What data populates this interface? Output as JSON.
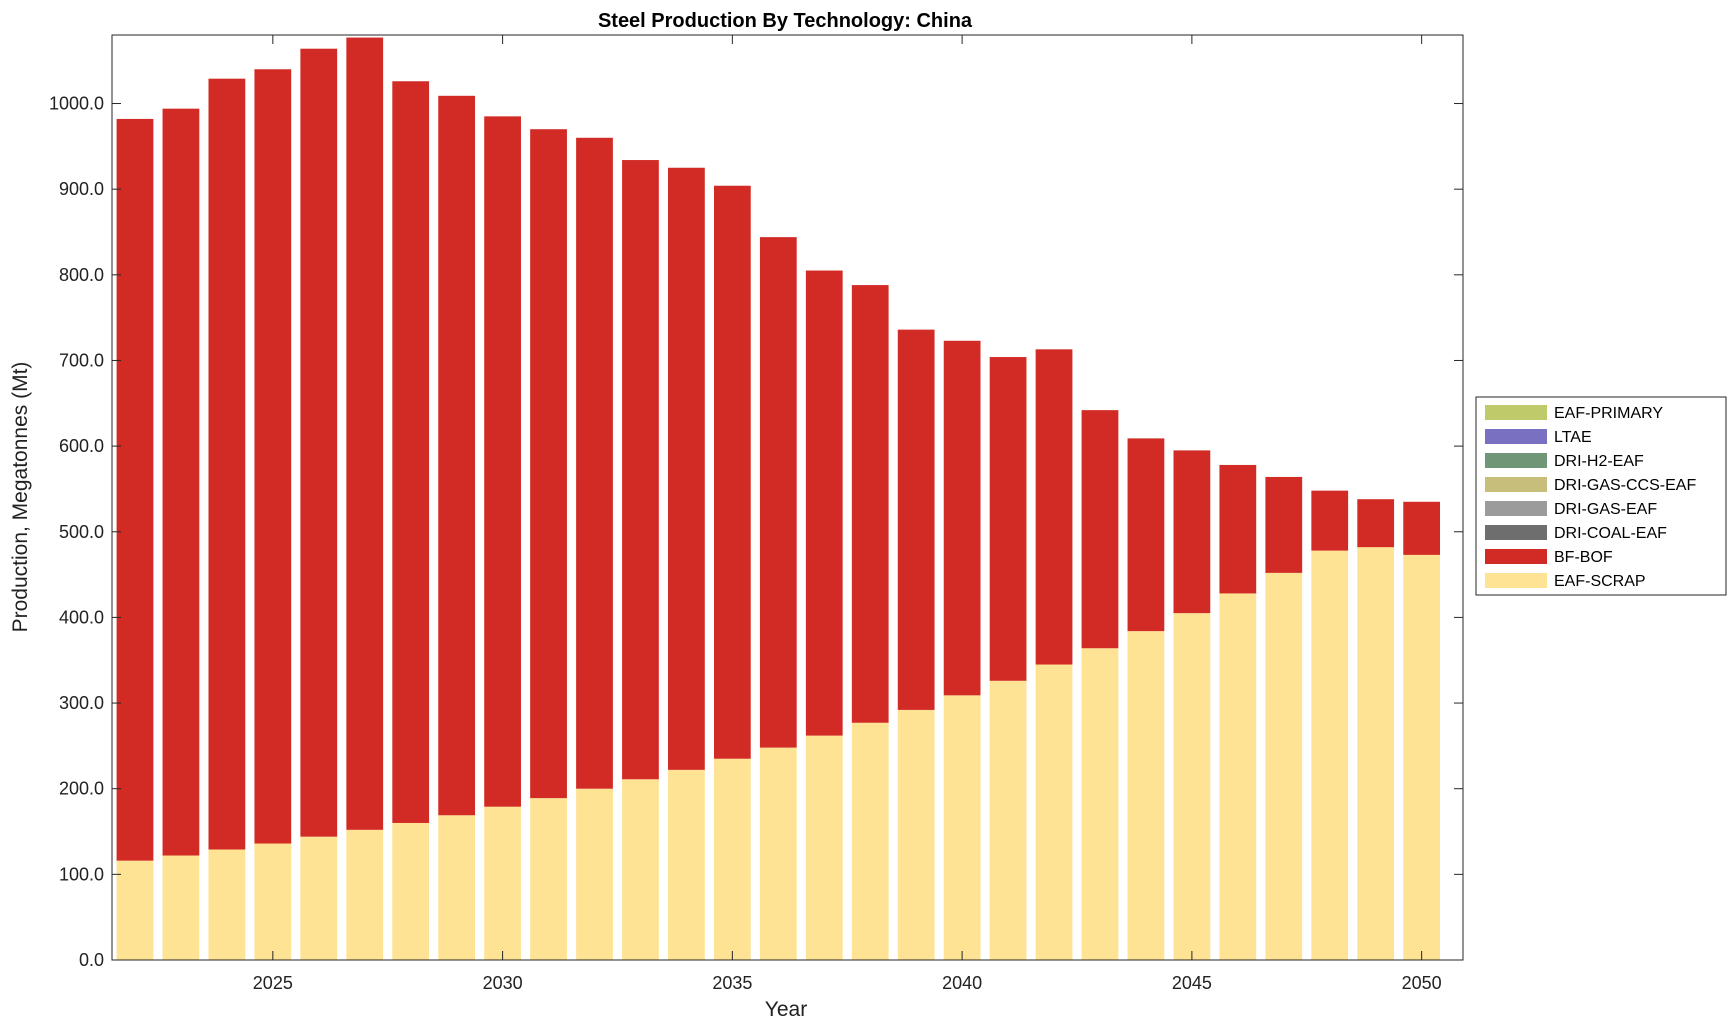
{
  "chart_data": {
    "type": "bar",
    "stacked": true,
    "title": "Steel Production By Technology: China",
    "xlabel": "Year",
    "ylabel": "Production, Megatonnes (Mt)",
    "xlim": [
      2021.5,
      2050.9
    ],
    "ylim": [
      0,
      1080
    ],
    "x_ticks": [
      "2025",
      "2030",
      "2035",
      "2040",
      "2045",
      "2050"
    ],
    "y_ticks": [
      "0.0",
      "100.0",
      "200.0",
      "300.0",
      "400.0",
      "500.0",
      "600.0",
      "700.0",
      "800.0",
      "900.0",
      "1000.0"
    ],
    "grid": false,
    "legend_position": "right",
    "categories": [
      2022,
      2023,
      2024,
      2025,
      2026,
      2027,
      2028,
      2029,
      2030,
      2031,
      2032,
      2033,
      2034,
      2035,
      2036,
      2037,
      2038,
      2039,
      2040,
      2041,
      2042,
      2043,
      2044,
      2045,
      2046,
      2047,
      2048,
      2049,
      2050
    ],
    "series": [
      {
        "name": "EAF-SCRAP",
        "color": "#FEE394",
        "values": [
          116,
          122,
          129,
          136,
          144,
          152,
          160,
          169,
          179,
          189,
          200,
          211,
          222,
          235,
          248,
          262,
          277,
          292,
          309,
          326,
          345,
          364,
          384,
          405,
          428,
          452,
          478,
          482,
          473
        ]
      },
      {
        "name": "BF-BOF",
        "color": "#D22A24",
        "values": [
          866,
          872,
          900,
          904,
          920,
          925,
          866,
          840,
          806,
          781,
          760,
          723,
          703,
          669,
          596,
          543,
          511,
          444,
          414,
          378,
          368,
          278,
          225,
          190,
          150,
          112,
          70,
          56,
          62
        ]
      },
      {
        "name": "DRI-COAL-EAF",
        "color": "#6E6E6E",
        "values": [
          0,
          0,
          0,
          0,
          0,
          0,
          0,
          0,
          0,
          0,
          0,
          0,
          0,
          0,
          0,
          0,
          0,
          0,
          0,
          0,
          0,
          0,
          0,
          0,
          0,
          0,
          0,
          0,
          0
        ]
      },
      {
        "name": "DRI-GAS-EAF",
        "color": "#9B9B9B",
        "values": [
          0,
          0,
          0,
          0,
          0,
          0,
          0,
          0,
          0,
          0,
          0,
          0,
          0,
          0,
          0,
          0,
          0,
          0,
          0,
          0,
          0,
          0,
          0,
          0,
          0,
          0,
          0,
          0,
          0
        ]
      },
      {
        "name": "DRI-GAS-CCS-EAF",
        "color": "#C8BE7C",
        "values": [
          0,
          0,
          0,
          0,
          0,
          0,
          0,
          0,
          0,
          0,
          0,
          0,
          0,
          0,
          0,
          0,
          0,
          0,
          0,
          0,
          0,
          0,
          0,
          0,
          0,
          0,
          0,
          0,
          0
        ]
      },
      {
        "name": "DRI-H2-EAF",
        "color": "#6F9676",
        "values": [
          0,
          0,
          0,
          0,
          0,
          0,
          0,
          0,
          0,
          0,
          0,
          0,
          0,
          0,
          0,
          0,
          0,
          0,
          0,
          0,
          0,
          0,
          0,
          0,
          0,
          0,
          0,
          0,
          0
        ]
      },
      {
        "name": "LTAE",
        "color": "#7A70C1",
        "values": [
          0,
          0,
          0,
          0,
          0,
          0,
          0,
          0,
          0,
          0,
          0,
          0,
          0,
          0,
          0,
          0,
          0,
          0,
          0,
          0,
          0,
          0,
          0,
          0,
          0,
          0,
          0,
          0,
          0
        ]
      },
      {
        "name": "EAF-PRIMARY",
        "color": "#BFCA6A",
        "values": [
          0,
          0,
          0,
          0,
          0,
          0,
          0,
          0,
          0,
          0,
          0,
          0,
          0,
          0,
          0,
          0,
          0,
          0,
          0,
          0,
          0,
          0,
          0,
          0,
          0,
          0,
          0,
          0,
          0
        ]
      }
    ],
    "legend_order": [
      "EAF-PRIMARY",
      "LTAE",
      "DRI-H2-EAF",
      "DRI-GAS-CCS-EAF",
      "DRI-GAS-EAF",
      "DRI-COAL-EAF",
      "BF-BOF",
      "EAF-SCRAP"
    ]
  }
}
